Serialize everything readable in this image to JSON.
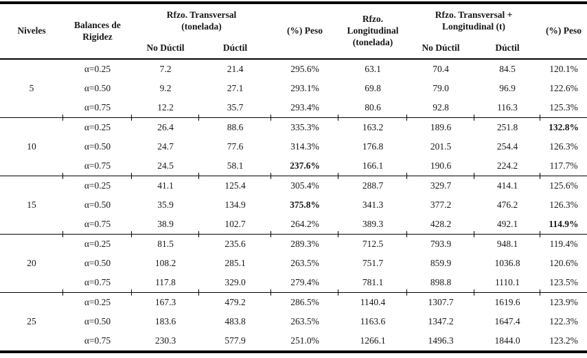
{
  "table": {
    "headers": {
      "niveles": "Niveles",
      "balances": "Balances de\nRigidez",
      "rfzo_transversal": "Rfzo. Transversal\n(tonelada)",
      "peso_transversal": "(%) Peso",
      "rfzo_longitudinal": "Rfzo.\nLongitudinal\n(tonelada)",
      "rfzo_trans_long": "Rfzo. Transversal +\nLongitudinal (t)",
      "peso_total": "(%) Peso",
      "no_ductil": "No Dúctil",
      "ductil": "Dúctil"
    },
    "groups": [
      {
        "niveles": "5",
        "rows": [
          {
            "cells": [
              "α=0.25",
              "7.2",
              "21.4",
              "295.6%",
              "63.1",
              "70.4",
              "84.5",
              "120.1%"
            ],
            "bold": []
          },
          {
            "cells": [
              "α=0.50",
              "9.2",
              "27.1",
              "293.1%",
              "69.8",
              "79.0",
              "96.9",
              "122.6%"
            ],
            "bold": []
          },
          {
            "cells": [
              "α=0.75",
              "12.2",
              "35.7",
              "293.4%",
              "80.6",
              "92.8",
              "116.3",
              "125.3%"
            ],
            "bold": []
          }
        ]
      },
      {
        "niveles": "10",
        "rows": [
          {
            "cells": [
              "α=0.25",
              "26.4",
              "88.6",
              "335.3%",
              "163.2",
              "189.6",
              "251.8",
              "132.8%"
            ],
            "bold": [
              7
            ]
          },
          {
            "cells": [
              "α=0.50",
              "24.7",
              "77.6",
              "314.3%",
              "176.8",
              "201.5",
              "254.4",
              "126.3%"
            ],
            "bold": []
          },
          {
            "cells": [
              "α=0.75",
              "24.5",
              "58.1",
              "237.6%",
              "166.1",
              "190.6",
              "224.2",
              "117.7%"
            ],
            "bold": [
              3
            ]
          }
        ]
      },
      {
        "niveles": "15",
        "rows": [
          {
            "cells": [
              "α=0.25",
              "41.1",
              "125.4",
              "305.4%",
              "288.7",
              "329.7",
              "414.1",
              "125.6%"
            ],
            "bold": []
          },
          {
            "cells": [
              "α=0.50",
              "35.9",
              "134.9",
              "375.8%",
              "341.3",
              "377.2",
              "476.2",
              "126.3%"
            ],
            "bold": [
              3
            ]
          },
          {
            "cells": [
              "α=0.75",
              "38.9",
              "102.7",
              "264.2%",
              "389.3",
              "428.2",
              "492.1",
              "114.9%"
            ],
            "bold": [
              7
            ]
          }
        ]
      },
      {
        "niveles": "20",
        "rows": [
          {
            "cells": [
              "α=0.25",
              "81.5",
              "235.6",
              "289.3%",
              "712.5",
              "793.9",
              "948.1",
              "119.4%"
            ],
            "bold": []
          },
          {
            "cells": [
              "α=0.50",
              "108.2",
              "285.1",
              "263.5%",
              "751.7",
              "859.9",
              "1036.8",
              "120.6%"
            ],
            "bold": []
          },
          {
            "cells": [
              "α=0.75",
              "117.8",
              "329.0",
              "279.4%",
              "781.1",
              "898.8",
              "1110.1",
              "123.5%"
            ],
            "bold": []
          }
        ]
      },
      {
        "niveles": "25",
        "rows": [
          {
            "cells": [
              "α=0.25",
              "167.3",
              "479.2",
              "286.5%",
              "1140.4",
              "1307.7",
              "1619.6",
              "123.9%"
            ],
            "bold": []
          },
          {
            "cells": [
              "α=0.50",
              "183.6",
              "483.8",
              "263.5%",
              "1163.6",
              "1347.2",
              "1647.4",
              "122.3%"
            ],
            "bold": []
          },
          {
            "cells": [
              "α=0.75",
              "230.3",
              "577.9",
              "251.0%",
              "1266.1",
              "1496.3",
              "1844.0",
              "123.2%"
            ],
            "bold": []
          }
        ]
      }
    ]
  },
  "chart_data": {
    "type": "table",
    "title": "",
    "column_groups": [
      "Niveles",
      "Balances de Rigidez",
      "Rfzo. Transversal (tonelada) [No Dúctil, Dúctil]",
      "(%) Peso",
      "Rfzo. Longitudinal (tonelada)",
      "Rfzo. Transversal + Longitudinal (t) [No Dúctil, Dúctil]",
      "(%) Peso"
    ],
    "rows": [
      [
        "5",
        "α=0.25",
        7.2,
        21.4,
        "295.6%",
        63.1,
        70.4,
        84.5,
        "120.1%"
      ],
      [
        "5",
        "α=0.50",
        9.2,
        27.1,
        "293.1%",
        69.8,
        79.0,
        96.9,
        "122.6%"
      ],
      [
        "5",
        "α=0.75",
        12.2,
        35.7,
        "293.4%",
        80.6,
        92.8,
        116.3,
        "125.3%"
      ],
      [
        "10",
        "α=0.25",
        26.4,
        88.6,
        "335.3%",
        163.2,
        189.6,
        251.8,
        "132.8%"
      ],
      [
        "10",
        "α=0.50",
        24.7,
        77.6,
        "314.3%",
        176.8,
        201.5,
        254.4,
        "126.3%"
      ],
      [
        "10",
        "α=0.75",
        24.5,
        58.1,
        "237.6%",
        166.1,
        190.6,
        224.2,
        "117.7%"
      ],
      [
        "15",
        "α=0.25",
        41.1,
        125.4,
        "305.4%",
        288.7,
        329.7,
        414.1,
        "125.6%"
      ],
      [
        "15",
        "α=0.50",
        35.9,
        134.9,
        "375.8%",
        341.3,
        377.2,
        476.2,
        "126.3%"
      ],
      [
        "15",
        "α=0.75",
        38.9,
        102.7,
        "264.2%",
        389.3,
        428.2,
        492.1,
        "114.9%"
      ],
      [
        "20",
        "α=0.25",
        81.5,
        235.6,
        "289.3%",
        712.5,
        793.9,
        948.1,
        "119.4%"
      ],
      [
        "20",
        "α=0.50",
        108.2,
        285.1,
        "263.5%",
        751.7,
        859.9,
        1036.8,
        "120.6%"
      ],
      [
        "20",
        "α=0.75",
        117.8,
        329.0,
        "279.4%",
        781.1,
        898.8,
        1110.1,
        "123.5%"
      ],
      [
        "25",
        "α=0.25",
        167.3,
        479.2,
        "286.5%",
        1140.4,
        1307.7,
        1619.6,
        "123.9%"
      ],
      [
        "25",
        "α=0.50",
        183.6,
        483.8,
        "263.5%",
        1163.6,
        1347.2,
        1647.4,
        "122.3%"
      ],
      [
        "25",
        "α=0.75",
        230.3,
        577.9,
        "251.0%",
        1266.1,
        1496.3,
        1844.0,
        "123.2%"
      ]
    ]
  }
}
